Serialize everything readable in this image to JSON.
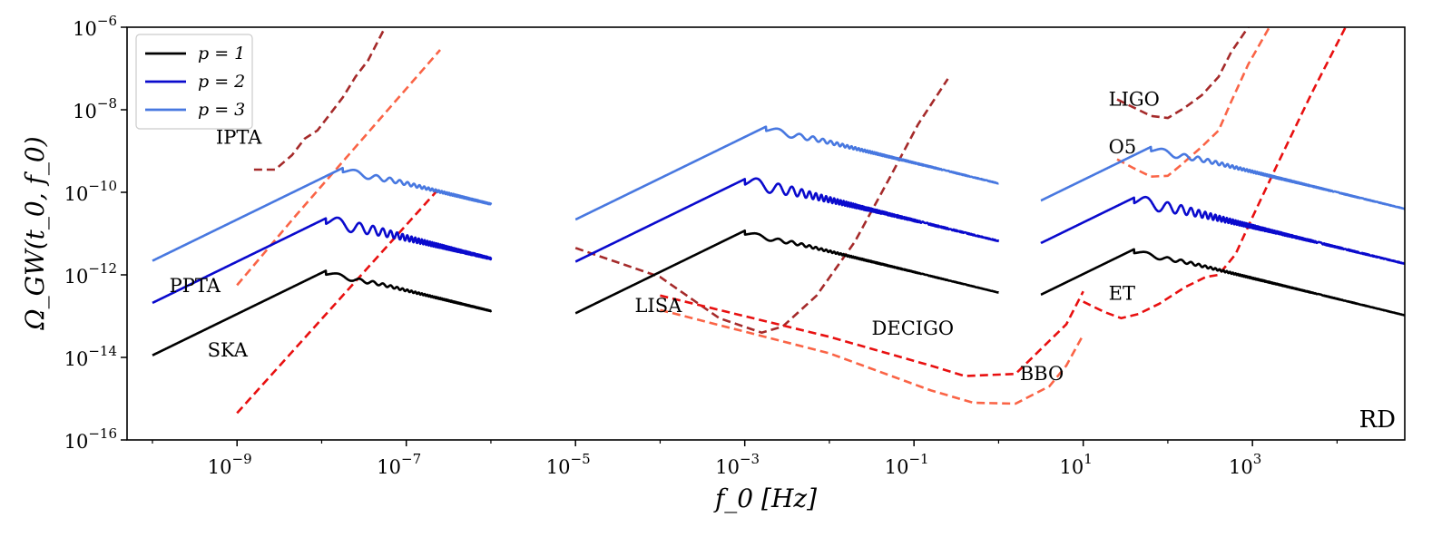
{
  "chart_data": {
    "type": "line",
    "title": "",
    "xlabel": "f_0 [Hz]",
    "ylabel": "Ω_GW(t_0, f_0)",
    "xscale": "log",
    "yscale": "log",
    "xlim_log10": [
      -10.3,
      4.8
    ],
    "ylim_log10": [
      -16,
      -6
    ],
    "corner_label": "RD",
    "x_ticks": [
      {
        "base": "10",
        "exp": "−9",
        "v": -9
      },
      {
        "base": "10",
        "exp": "−7",
        "v": -7
      },
      {
        "base": "10",
        "exp": "−5",
        "v": -5
      },
      {
        "base": "10",
        "exp": "−3",
        "v": -3
      },
      {
        "base": "10",
        "exp": "−1",
        "v": -1
      },
      {
        "base": "10",
        "exp": "1",
        "v": 1
      },
      {
        "base": "10",
        "exp": "3",
        "v": 3
      }
    ],
    "y_ticks": [
      {
        "base": "10",
        "exp": "−6",
        "v": -6
      },
      {
        "base": "10",
        "exp": "−8",
        "v": -8
      },
      {
        "base": "10",
        "exp": "−10",
        "v": -10
      },
      {
        "base": "10",
        "exp": "−12",
        "v": -12
      },
      {
        "base": "10",
        "exp": "−14",
        "v": -14
      },
      {
        "base": "10",
        "exp": "−16",
        "v": -16
      }
    ],
    "legend": [
      {
        "label": "p = 1",
        "color": "#000000"
      },
      {
        "label": "p = 2",
        "color": "#0a0acd"
      },
      {
        "label": "p = 3",
        "color": "#4878e0"
      }
    ],
    "signal_note": "log10 coordinates; three frequency windows per p",
    "signals": [
      {
        "name": "p = 1",
        "color": "#000000",
        "windows": [
          {
            "x0": -10,
            "x1": -6,
            "peakX": -7.95,
            "peakY": -11.82,
            "slope": 1,
            "osc": 0.07
          },
          {
            "x0": -5,
            "x1": 0,
            "peakX": -3.0,
            "peakY": -10.85,
            "slope": 1,
            "osc": 0.07
          },
          {
            "x0": 0.5,
            "x1": 4.8,
            "peakX": 1.6,
            "peakY": -11.3,
            "slope": 1,
            "osc": 0.07
          }
        ]
      },
      {
        "name": "p = 2",
        "color": "#0a0acd",
        "windows": [
          {
            "x0": -10,
            "x1": -6,
            "peakX": -7.95,
            "peakY": -10.55,
            "slope": 1,
            "osc": 0.2
          },
          {
            "x0": -5,
            "x1": 0,
            "peakX": -3.0,
            "peakY": -9.6,
            "slope": 1,
            "osc": 0.2
          },
          {
            "x0": 0.5,
            "x1": 4.8,
            "peakX": 1.6,
            "peakY": -10.05,
            "slope": 1,
            "osc": 0.2
          }
        ]
      },
      {
        "name": "p = 3",
        "color": "#4878e0",
        "windows": [
          {
            "x0": -10,
            "x1": -6,
            "peakX": -7.75,
            "peakY": -9.33,
            "slope": 1,
            "osc": 0.1
          },
          {
            "x0": -5,
            "x1": 0,
            "peakX": -2.75,
            "peakY": -8.33,
            "slope": 1,
            "osc": 0.1
          },
          {
            "x0": 0.5,
            "x1": 4.8,
            "peakX": 1.8,
            "peakY": -8.82,
            "slope": 1,
            "osc": 0.1
          }
        ]
      }
    ],
    "detectors": [
      {
        "name": "IPTA",
        "color": "#a52a2a",
        "label_at": [
          -9.25,
          -8.82
        ],
        "points": [
          [
            -8.8,
            -9.45
          ],
          [
            -8.55,
            -9.45
          ],
          [
            -8.35,
            -9.1
          ],
          [
            -8.2,
            -8.7
          ],
          [
            -8.05,
            -8.5
          ],
          [
            -7.9,
            -8.1
          ],
          [
            -7.75,
            -7.7
          ],
          [
            -7.6,
            -7.2
          ],
          [
            -7.45,
            -6.8
          ],
          [
            -7.25,
            -6.0
          ]
        ]
      },
      {
        "name": "PPTA",
        "color": "#fa6446",
        "label_at": [
          -9.8,
          -12.42
        ],
        "points": [
          [
            -9.0,
            -12.25
          ],
          [
            -8.3,
            -10.55
          ],
          [
            -6.6,
            -6.55
          ]
        ]
      },
      {
        "name": "SKA",
        "color": "#e81010",
        "label_at": [
          -9.35,
          -13.98
        ],
        "points": [
          [
            -9.0,
            -15.35
          ],
          [
            -6.6,
            -9.88
          ]
        ]
      },
      {
        "name": "LISA",
        "color": "#a52a2a",
        "label_at": [
          -4.3,
          -12.9
        ],
        "points": [
          [
            -5.0,
            -11.35
          ],
          [
            -4.0,
            -12.05
          ],
          [
            -3.3,
            -13.05
          ],
          [
            -2.8,
            -13.4
          ],
          [
            -2.55,
            -13.25
          ],
          [
            -2.15,
            -12.5
          ],
          [
            -1.7,
            -11.2
          ],
          [
            -1.3,
            -9.7
          ],
          [
            -0.95,
            -8.35
          ],
          [
            -0.6,
            -7.25
          ]
        ]
      },
      {
        "name": "DECIGO",
        "color": "#e81010",
        "label_at": [
          -1.5,
          -13.45
        ],
        "points": [
          [
            -4.0,
            -12.5
          ],
          [
            -2.0,
            -13.5
          ],
          [
            -0.8,
            -14.2
          ],
          [
            -0.4,
            -14.45
          ],
          [
            0.2,
            -14.4
          ],
          [
            0.55,
            -13.7
          ],
          [
            0.8,
            -13.2
          ],
          [
            1.0,
            -12.4
          ]
        ]
      },
      {
        "name": "BBO",
        "color": "#fa6446",
        "label_at": [
          0.25,
          -14.55
        ],
        "points": [
          [
            -4.0,
            -12.85
          ],
          [
            -2.0,
            -13.9
          ],
          [
            -0.8,
            -14.8
          ],
          [
            -0.3,
            -15.1
          ],
          [
            0.2,
            -15.12
          ],
          [
            0.6,
            -14.7
          ],
          [
            0.8,
            -14.2
          ],
          [
            1.0,
            -13.45
          ]
        ]
      },
      {
        "name": "LIGO",
        "color": "#a52a2a",
        "label_at": [
          1.3,
          -7.9
        ],
        "points": [
          [
            1.4,
            -7.75
          ],
          [
            1.6,
            -7.95
          ],
          [
            1.8,
            -8.15
          ],
          [
            2.0,
            -8.2
          ],
          [
            2.2,
            -7.95
          ],
          [
            2.4,
            -7.65
          ],
          [
            2.6,
            -7.2
          ],
          [
            2.75,
            -6.6
          ],
          [
            2.95,
            -6.0
          ]
        ]
      },
      {
        "name": "O5",
        "color": "#fa6446",
        "label_at": [
          1.3,
          -9.05
        ],
        "points": [
          [
            1.4,
            -9.2
          ],
          [
            1.6,
            -9.42
          ],
          [
            1.8,
            -9.62
          ],
          [
            2.0,
            -9.6
          ],
          [
            2.15,
            -9.35
          ],
          [
            2.4,
            -8.9
          ],
          [
            2.6,
            -8.5
          ],
          [
            2.75,
            -7.8
          ],
          [
            2.95,
            -6.9
          ],
          [
            3.2,
            -6.0
          ]
        ]
      },
      {
        "name": "ET",
        "color": "#e81010",
        "label_at": [
          1.3,
          -12.6
        ],
        "points": [
          [
            1.0,
            -12.65
          ],
          [
            1.25,
            -12.9
          ],
          [
            1.45,
            -13.05
          ],
          [
            1.65,
            -12.95
          ],
          [
            1.9,
            -12.7
          ],
          [
            2.2,
            -12.3
          ],
          [
            2.45,
            -12.05
          ],
          [
            2.6,
            -12.0
          ],
          [
            2.8,
            -11.5
          ],
          [
            3.0,
            -10.6
          ],
          [
            3.3,
            -9.3
          ],
          [
            3.7,
            -7.6
          ],
          [
            4.1,
            -6.0
          ]
        ]
      }
    ]
  }
}
